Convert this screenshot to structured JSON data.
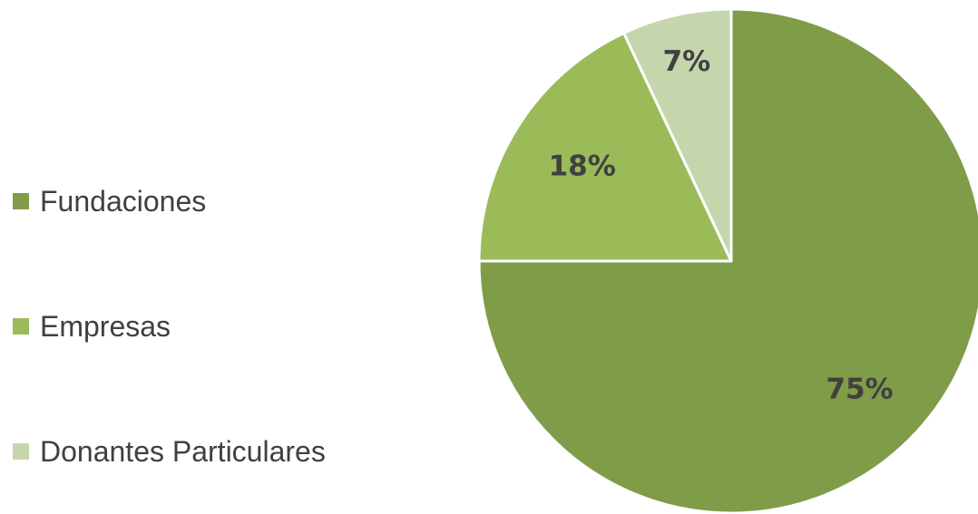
{
  "chart_data": {
    "type": "pie",
    "title": "",
    "legend_position": "left",
    "start": "top",
    "direction": "clockwise",
    "slices": [
      {
        "name": "Fundaciones",
        "value": 75,
        "label": "75%",
        "color": "#7f9c48"
      },
      {
        "name": "Empresas",
        "value": 18,
        "label": "18%",
        "color": "#9bbb59"
      },
      {
        "name": "Donantes Particulares",
        "value": 7,
        "label": "7%",
        "color": "#c5d6ac"
      }
    ]
  }
}
